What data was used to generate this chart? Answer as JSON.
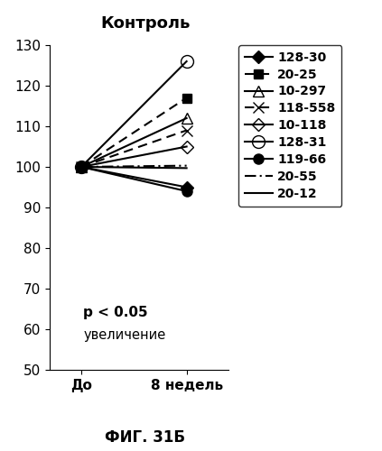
{
  "title": "Контроль",
  "xlabel_before": "До",
  "xlabel_after": "8 недель",
  "fig_label": "ФИГ. 31Б",
  "annotation_line1": "p < 0.05",
  "annotation_line2": "увеличение",
  "ylim": [
    50,
    130
  ],
  "yticks": [
    50,
    60,
    70,
    80,
    90,
    100,
    110,
    120,
    130
  ],
  "series": [
    {
      "label": "128-30",
      "before": 100,
      "after": 95,
      "marker": "D",
      "markersize": 7,
      "filled": true,
      "linestyle": "-",
      "dashes": null
    },
    {
      "label": "20-25",
      "before": 100,
      "after": 117,
      "marker": "s",
      "markersize": 7,
      "filled": true,
      "linestyle": "--",
      "dashes": [
        5,
        3
      ]
    },
    {
      "label": "10-297",
      "before": 100,
      "after": 112,
      "marker": "^",
      "markersize": 8,
      "filled": false,
      "linestyle": "-",
      "dashes": null
    },
    {
      "label": "118-558",
      "before": 100,
      "after": 109,
      "marker": "x",
      "markersize": 8,
      "filled": true,
      "linestyle": "--",
      "dashes": [
        5,
        3
      ]
    },
    {
      "label": "10-118",
      "before": 100,
      "after": 105,
      "marker": "D",
      "markersize": 7,
      "filled": false,
      "linestyle": "-",
      "dashes": null
    },
    {
      "label": "128-31",
      "before": 100,
      "after": 126,
      "marker": "o",
      "markersize": 10,
      "filled": false,
      "linestyle": "-",
      "dashes": null
    },
    {
      "label": "119-66",
      "before": 100,
      "after": 94,
      "marker": "o",
      "markersize": 8,
      "filled": true,
      "linestyle": "-",
      "dashes": null
    },
    {
      "label": "20-55",
      "before": 100,
      "after": 100,
      "marker": null,
      "markersize": 5,
      "filled": true,
      "linestyle": "--",
      "dashes": [
        6,
        2,
        1,
        2
      ]
    },
    {
      "label": "20-12",
      "before": 100,
      "after": 100,
      "marker": null,
      "markersize": 5,
      "filled": true,
      "linestyle": "-",
      "dashes": null
    }
  ],
  "title_fontsize": 13,
  "legend_fontsize": 10,
  "tick_fontsize": 11,
  "annot_fontsize": 11
}
